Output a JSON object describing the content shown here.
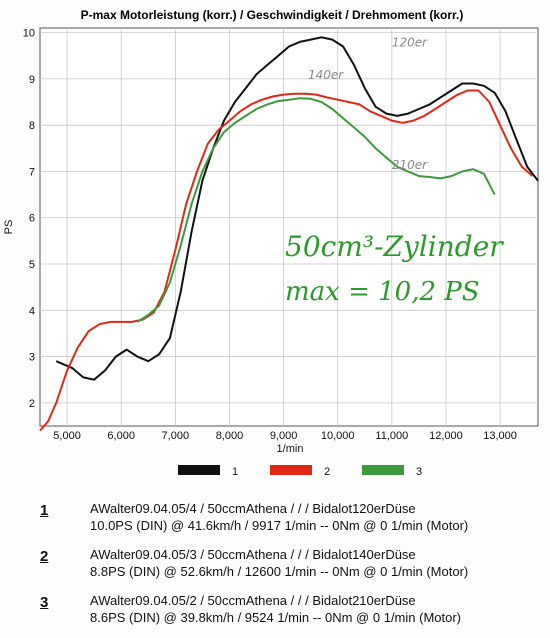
{
  "chart_data": {
    "type": "line",
    "title": "P-max Motorleistung (korr.) / Geschwindigkeit / Drehmoment (korr.)",
    "xlabel": "1/min",
    "ylabel": "PS",
    "xlim": [
      4500,
      13700
    ],
    "ylim": [
      1.5,
      10.1
    ],
    "grid": true,
    "legend_position": "bottom-center",
    "x_ticks": [
      "5,000",
      "6,000",
      "7,000",
      "8,000",
      "9,000",
      "10,000",
      "11,000",
      "12,000",
      "13,000"
    ],
    "y_ticks": [
      "2",
      "3",
      "4",
      "5",
      "6",
      "7",
      "8",
      "9",
      "10"
    ],
    "series": [
      {
        "name": "1",
        "color": "#111111",
        "x": [
          4800,
          5100,
          5300,
          5500,
          5700,
          5900,
          6100,
          6300,
          6500,
          6700,
          6900,
          7100,
          7300,
          7500,
          7700,
          7900,
          8100,
          8300,
          8500,
          8700,
          8900,
          9100,
          9300,
          9500,
          9700,
          9900,
          10100,
          10300,
          10500,
          10700,
          10900,
          11100,
          11300,
          11500,
          11700,
          11900,
          12100,
          12300,
          12500,
          12700,
          12900,
          13100,
          13300,
          13500,
          13700
        ],
        "values": [
          2.9,
          2.75,
          2.55,
          2.5,
          2.7,
          3.0,
          3.15,
          3.0,
          2.9,
          3.05,
          3.4,
          4.4,
          5.7,
          6.8,
          7.5,
          8.1,
          8.5,
          8.8,
          9.1,
          9.3,
          9.5,
          9.7,
          9.8,
          9.85,
          9.9,
          9.85,
          9.7,
          9.3,
          8.8,
          8.4,
          8.25,
          8.2,
          8.25,
          8.35,
          8.45,
          8.6,
          8.75,
          8.9,
          8.9,
          8.85,
          8.7,
          8.3,
          7.7,
          7.1,
          6.8
        ]
      },
      {
        "name": "2",
        "color": "#e02818",
        "x": [
          4500,
          4650,
          4800,
          5000,
          5200,
          5400,
          5600,
          5800,
          6000,
          6200,
          6400,
          6600,
          6800,
          7000,
          7200,
          7400,
          7600,
          7800,
          8000,
          8200,
          8400,
          8600,
          8800,
          9000,
          9200,
          9400,
          9600,
          9800,
          10000,
          10200,
          10400,
          10600,
          10800,
          11000,
          11200,
          11400,
          11600,
          11800,
          12000,
          12200,
          12400,
          12600,
          12800,
          13000,
          13200,
          13400,
          13600
        ],
        "values": [
          1.4,
          1.6,
          2.0,
          2.7,
          3.2,
          3.55,
          3.7,
          3.75,
          3.75,
          3.75,
          3.8,
          3.95,
          4.4,
          5.3,
          6.3,
          7.0,
          7.6,
          7.9,
          8.1,
          8.3,
          8.45,
          8.55,
          8.62,
          8.66,
          8.68,
          8.68,
          8.66,
          8.6,
          8.55,
          8.5,
          8.45,
          8.3,
          8.2,
          8.1,
          8.05,
          8.1,
          8.2,
          8.35,
          8.5,
          8.65,
          8.75,
          8.75,
          8.5,
          8.0,
          7.5,
          7.1,
          6.9
        ]
      },
      {
        "name": "3",
        "color": "#3c9a3c",
        "x": [
          6300,
          6500,
          6700,
          6900,
          7100,
          7300,
          7500,
          7700,
          7900,
          8100,
          8300,
          8500,
          8700,
          8900,
          9100,
          9300,
          9500,
          9700,
          9900,
          10100,
          10300,
          10500,
          10700,
          10900,
          11100,
          11300,
          11500,
          11700,
          11900,
          12100,
          12300,
          12500,
          12700,
          12900
        ],
        "values": [
          3.75,
          3.9,
          4.1,
          4.6,
          5.4,
          6.3,
          7.0,
          7.5,
          7.85,
          8.05,
          8.2,
          8.35,
          8.45,
          8.52,
          8.55,
          8.58,
          8.57,
          8.5,
          8.35,
          8.15,
          7.95,
          7.75,
          7.5,
          7.3,
          7.1,
          7.0,
          6.9,
          6.88,
          6.85,
          6.9,
          7.0,
          7.05,
          6.95,
          6.5
        ]
      }
    ],
    "annotations": [
      {
        "text": "120er",
        "x": 11000,
        "y": 9.7,
        "color": "#8a8a8a"
      },
      {
        "text": "140er",
        "x": 9450,
        "y": 9.0,
        "color": "#8a8a8a"
      },
      {
        "text": "210er",
        "x": 11000,
        "y": 7.05,
        "color": "#8a8a8a"
      }
    ],
    "handwritten": {
      "line1": "50cm³-Zylinder",
      "line2": "max = 10,2 PS"
    }
  },
  "legend": [
    {
      "label": "1",
      "color": "#111111"
    },
    {
      "label": "2",
      "color": "#e02818"
    },
    {
      "label": "3",
      "color": "#3c9a3c"
    }
  ],
  "runs": [
    {
      "num": "1",
      "line1": "AWalter09.04.05/4 / 50ccmAthena /  /  / Bidalot120erDüse",
      "line2": "10.0PS (DIN) @ 41.6km/h / 9917 1/min -- 0Nm @ 0 1/min (Motor)"
    },
    {
      "num": "2",
      "line1": "AWalter09.04.05/3 / 50ccmAthena /  /  / Bidalot140erDüse",
      "line2": "8.8PS (DIN) @ 52.6km/h / 12600 1/min -- 0Nm @ 0 1/min (Motor)"
    },
    {
      "num": "3",
      "line1": "AWalter09.04.05/2 / 50ccmAthena /  /  / Bidalot210erDüse",
      "line2": "8.6PS (DIN) @ 39.8km/h / 9524 1/min -- 0Nm @ 0 1/min (Motor)"
    }
  ]
}
